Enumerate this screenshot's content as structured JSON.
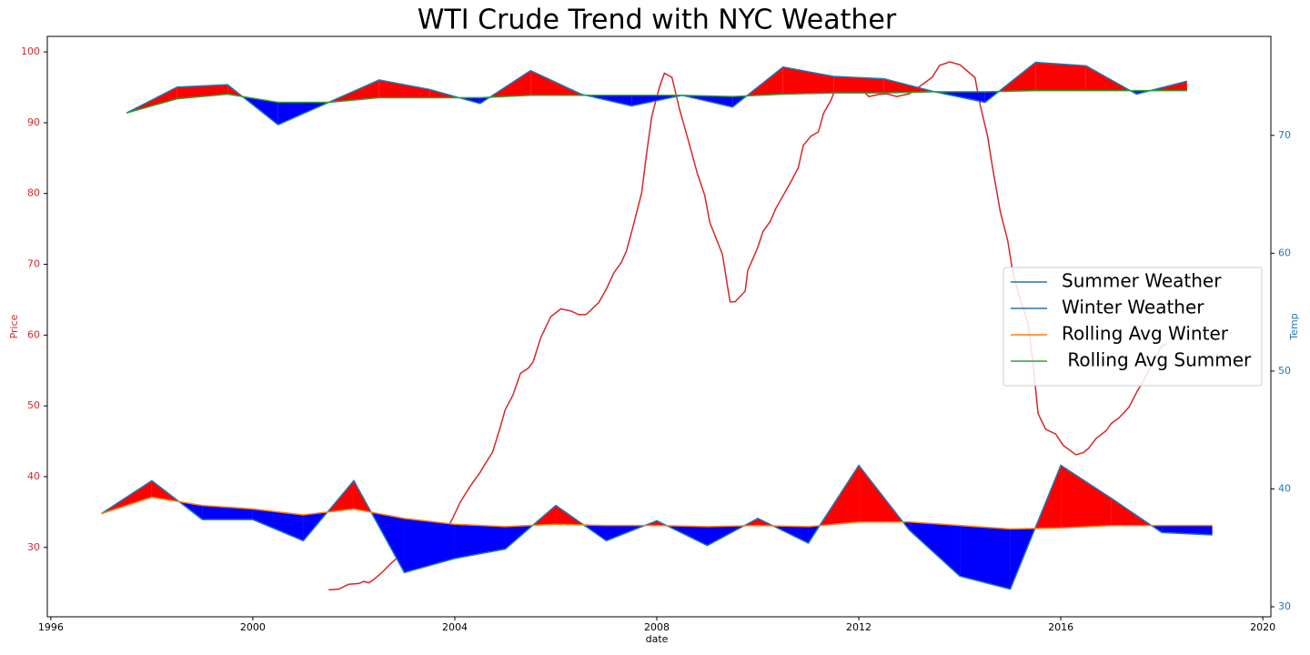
{
  "chart_data": {
    "type": "line",
    "title": "WTI Crude Trend with NYC Weather",
    "xlabel": "date",
    "ylabel": "Price",
    "y2label": "Temp",
    "ycolor": "#d62728",
    "y2color": "#1f77b4",
    "xlim": [
      1995.93,
      2020.16
    ],
    "xticks": [
      1996,
      2000,
      2004,
      2008,
      2012,
      2016,
      2020
    ],
    "ylim": [
      20.2,
      102.2
    ],
    "yticks": [
      30,
      40,
      50,
      60,
      70,
      80,
      90,
      100
    ],
    "y2lim": [
      29.15,
      78.4
    ],
    "y2ticks": [
      30,
      40,
      50,
      60,
      70
    ],
    "legend": "center right",
    "fill_between": [
      [
        0,
        3
      ],
      [
        1,
        2
      ]
    ],
    "fill_above": "#ff0000",
    "fill_below": "#0000ff",
    "series": [
      {
        "name": "Summer Weather",
        "color": "#1f77b4",
        "axis": "y2",
        "x": [
          1997.5,
          1998.5,
          1999.5,
          2000.5,
          2001.5,
          2002.5,
          2003.5,
          2004.5,
          2005.5,
          2006.5,
          2007.5,
          2008.5,
          2009.5,
          2010.5,
          2011.5,
          2012.5,
          2013.5,
          2014.5,
          2015.5,
          2016.5,
          2017.5,
          2018.5
        ],
        "values": [
          71.9,
          74.1,
          74.3,
          70.9,
          72.8,
          74.7,
          73.9,
          72.7,
          75.5,
          73.5,
          72.5,
          73.4,
          72.4,
          75.8,
          75.0,
          74.8,
          73.7,
          72.8,
          76.2,
          75.9,
          73.5,
          74.6
        ]
      },
      {
        "name": "Winter Weather",
        "color": "#1f77b4",
        "axis": "y2",
        "x": [
          1997,
          1998,
          1999,
          2000,
          2001,
          2002,
          2003,
          2004,
          2005,
          2006,
          2007,
          2008,
          2009,
          2010,
          2011,
          2012,
          2013,
          2014,
          2015,
          2016,
          2017,
          2018,
          2019
        ],
        "values": [
          37.9,
          40.7,
          37.4,
          37.4,
          35.6,
          40.7,
          32.9,
          34.1,
          34.9,
          38.6,
          35.6,
          37.3,
          35.2,
          37.5,
          35.4,
          42.0,
          36.5,
          32.6,
          31.5,
          42.0,
          39.2,
          36.3,
          36.1
        ]
      },
      {
        "name": "Rolling Avg Winter",
        "color": "#ff7f0e",
        "axis": "y2",
        "x": [
          1997,
          1998,
          1999,
          2000,
          2001,
          2002,
          2003,
          2004,
          2005,
          2006,
          2007,
          2008,
          2009,
          2010,
          2011,
          2012,
          2013,
          2014,
          2015,
          2016,
          2017,
          2018,
          2019
        ],
        "values": [
          37.9,
          39.3,
          38.6,
          38.3,
          37.8,
          38.3,
          37.5,
          37.0,
          36.8,
          37.0,
          36.9,
          36.9,
          36.8,
          36.9,
          36.8,
          37.2,
          37.2,
          36.9,
          36.6,
          36.7,
          36.9,
          36.9,
          36.9
        ]
      },
      {
        "name": " Rolling Avg Summer",
        "color": "#2ca02c",
        "axis": "y2",
        "x": [
          1997.5,
          1998.5,
          1999.5,
          2000.5,
          2001.5,
          2002.5,
          2003.5,
          2004.5,
          2005.5,
          2006.5,
          2007.5,
          2008.5,
          2009.5,
          2010.5,
          2011.5,
          2012.5,
          2013.5,
          2014.5,
          2015.5,
          2016.5,
          2017.5,
          2018.5
        ],
        "values": [
          71.9,
          73.1,
          73.5,
          72.8,
          72.8,
          73.2,
          73.2,
          73.2,
          73.4,
          73.4,
          73.4,
          73.4,
          73.3,
          73.5,
          73.6,
          73.6,
          73.7,
          73.7,
          73.8,
          73.8,
          73.8,
          73.8
        ]
      },
      {
        "color": "#d62728",
        "x": [
          2001.5,
          2001.7,
          2001.9,
          2002.1,
          2002.2,
          2002.3,
          2002.4,
          2002.55,
          2002.7,
          2002.9,
          2003.1,
          2003.3,
          2003.55,
          2003.8,
          2003.95,
          2004.1,
          2004.3,
          2004.5,
          2004.6,
          2004.75,
          2004.9,
          2005.0,
          2005.15,
          2005.3,
          2005.45,
          2005.55,
          2005.7,
          2005.9,
          2006.1,
          2006.3,
          2006.45,
          2006.6,
          2006.85,
          2007.0,
          2007.15,
          2007.3,
          2007.4,
          2007.55,
          2007.7,
          2007.8,
          2007.9,
          2008.05,
          2008.15,
          2008.3,
          2008.45,
          2008.6,
          2008.8,
          2008.95,
          2009.05,
          2009.3,
          2009.4,
          2009.45,
          2009.55,
          2009.75,
          2009.8,
          2010.0,
          2010.1,
          2010.25,
          2010.35,
          2010.5,
          2010.65,
          2010.8,
          2010.9,
          2011.05,
          2011.2,
          2011.3,
          2011.45,
          2011.6,
          2011.75,
          2012.0,
          2012.2,
          2012.4,
          2012.55,
          2012.75,
          2013.0,
          2013.2,
          2013.45,
          2013.6,
          2013.8,
          2014.0,
          2014.15,
          2014.3,
          2014.4,
          2014.55,
          2014.65,
          2014.8,
          2014.95,
          2015.05,
          2015.2,
          2015.35,
          2015.45,
          2015.55,
          2015.7,
          2015.9,
          2016.05,
          2016.3,
          2016.45,
          2016.55,
          2016.7,
          2016.9,
          2017.0,
          2017.15,
          2017.35,
          2017.5,
          2017.65,
          2017.85,
          2018.0,
          2018.1
        ],
        "values": [
          24.0,
          24.1,
          24.8,
          24.9,
          25.2,
          25.0,
          25.5,
          26.4,
          27.5,
          28.8,
          29.7,
          30.8,
          31.5,
          32.2,
          34.0,
          36.3,
          38.6,
          40.6,
          41.8,
          43.5,
          47.0,
          49.5,
          51.5,
          54.6,
          55.3,
          56.2,
          59.6,
          62.6,
          63.7,
          63.4,
          62.9,
          62.9,
          64.6,
          66.5,
          68.8,
          70.3,
          71.9,
          75.9,
          80.1,
          85.8,
          90.9,
          95.0,
          97.0,
          96.4,
          91.9,
          88.1,
          82.9,
          79.7,
          75.9,
          71.4,
          66.9,
          64.7,
          64.7,
          66.2,
          69.1,
          72.4,
          74.6,
          76.1,
          77.8,
          79.7,
          81.6,
          83.6,
          86.8,
          88.1,
          88.7,
          91.3,
          93.2,
          96.0,
          95.0,
          95.1,
          93.7,
          94.0,
          94.1,
          93.7,
          94.1,
          95.1,
          96.4,
          98.1,
          98.6,
          98.2,
          97.3,
          96.4,
          92.6,
          88.1,
          83.6,
          77.5,
          73.3,
          68.8,
          65.0,
          61.7,
          56.0,
          48.9,
          46.7,
          46.0,
          44.4,
          43.1,
          43.4,
          44.0,
          45.4,
          46.5,
          47.5,
          48.3,
          49.8,
          51.9,
          53.7,
          56.6,
          58.5,
          58.8
        ]
      }
    ]
  }
}
